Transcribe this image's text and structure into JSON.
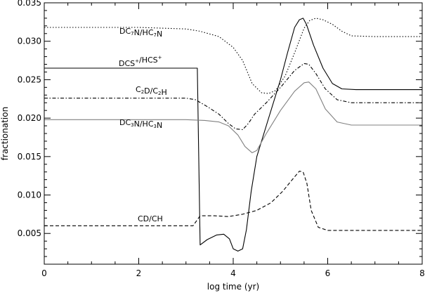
{
  "chart_data": {
    "type": "line",
    "xlabel": "log time (yr)",
    "ylabel": "fractionation",
    "xlim": [
      0,
      8
    ],
    "ylim": [
      0.001,
      0.035
    ],
    "xticks": [
      0,
      2,
      4,
      6,
      8
    ],
    "xtick_labels": [
      "0",
      "2",
      "4",
      "6",
      "8"
    ],
    "yticks": [
      0.005,
      0.01,
      0.015,
      0.02,
      0.025,
      0.03,
      0.035
    ],
    "ytick_labels": [
      "0.005",
      "0.010",
      "0.015",
      "0.020",
      "0.025",
      "0.030",
      "0.035"
    ],
    "grid": false,
    "legend": "none",
    "series": [
      {
        "name": "DC7N/HC7N",
        "label_parts": [
          [
            "DC",
            false
          ],
          [
            "7",
            true
          ],
          [
            "N/HC",
            false
          ],
          [
            "7",
            true
          ],
          [
            "N",
            false
          ]
        ],
        "color": "#000000",
        "style": "dotted",
        "x": [
          0,
          1,
          2,
          3,
          3.3,
          3.7,
          4.0,
          4.2,
          4.4,
          4.6,
          4.75,
          4.9,
          5.1,
          5.3,
          5.5,
          5.62,
          5.75,
          5.9,
          6.1,
          6.3,
          6.5,
          7,
          8
        ],
        "y": [
          0.0318,
          0.0318,
          0.0318,
          0.0316,
          0.0313,
          0.0306,
          0.0292,
          0.0275,
          0.0245,
          0.0233,
          0.0232,
          0.0236,
          0.0255,
          0.0285,
          0.0317,
          0.0327,
          0.033,
          0.0328,
          0.0322,
          0.0313,
          0.0307,
          0.0306,
          0.0306
        ]
      },
      {
        "name": "DCS+/HCS+",
        "label_parts": [
          [
            "DCS",
            false
          ],
          [
            "+",
            "sup"
          ],
          [
            "/HCS",
            false
          ],
          [
            "+",
            "sup"
          ]
        ],
        "color": "#000000",
        "style": "solid",
        "x": [
          0,
          3.22,
          3.24,
          3.3,
          3.45,
          3.65,
          3.8,
          3.92,
          4.0,
          4.1,
          4.2,
          4.28,
          4.38,
          4.5,
          4.75,
          5.0,
          5.15,
          5.3,
          5.4,
          5.48,
          5.55,
          5.7,
          5.9,
          6.1,
          6.3,
          6.6,
          7,
          8
        ],
        "y": [
          0.0265,
          0.0265,
          0.0265,
          0.0035,
          0.0042,
          0.0048,
          0.0049,
          0.0043,
          0.003,
          0.0027,
          0.003,
          0.0055,
          0.0105,
          0.015,
          0.02,
          0.025,
          0.0285,
          0.0318,
          0.0328,
          0.033,
          0.0322,
          0.0295,
          0.0265,
          0.0245,
          0.0238,
          0.0237,
          0.0237,
          0.0237
        ]
      },
      {
        "name": "C2D/C2H",
        "label_parts": [
          [
            "C",
            false
          ],
          [
            "2",
            true
          ],
          [
            "D/C",
            false
          ],
          [
            "2",
            true
          ],
          [
            "H",
            false
          ]
        ],
        "color": "#000000",
        "style": "dash-dot",
        "x": [
          0,
          3.0,
          3.2,
          3.45,
          3.7,
          3.9,
          4.05,
          4.2,
          4.32,
          4.45,
          4.7,
          5.0,
          5.3,
          5.5,
          5.6,
          5.75,
          5.95,
          6.2,
          6.5,
          7,
          8
        ],
        "y": [
          0.0226,
          0.0226,
          0.0224,
          0.0215,
          0.0205,
          0.0193,
          0.0186,
          0.0185,
          0.0193,
          0.0205,
          0.022,
          0.024,
          0.0262,
          0.0271,
          0.027,
          0.0258,
          0.0238,
          0.0224,
          0.022,
          0.022,
          0.022
        ]
      },
      {
        "name": "DC3N/HC3N",
        "label_parts": [
          [
            "DC",
            false
          ],
          [
            "3",
            true
          ],
          [
            "N/HC",
            false
          ],
          [
            "3",
            true
          ],
          [
            "N",
            false
          ]
        ],
        "color": "#808080",
        "style": "solid",
        "x": [
          0,
          2.5,
          3.0,
          3.4,
          3.7,
          3.9,
          4.1,
          4.25,
          4.4,
          4.5,
          4.7,
          5.0,
          5.3,
          5.5,
          5.6,
          5.75,
          5.95,
          6.2,
          6.5,
          7,
          8
        ],
        "y": [
          0.0198,
          0.0198,
          0.0198,
          0.0197,
          0.0195,
          0.019,
          0.0178,
          0.0163,
          0.0155,
          0.0158,
          0.018,
          0.021,
          0.0235,
          0.0246,
          0.0247,
          0.0238,
          0.0212,
          0.0195,
          0.0191,
          0.0191,
          0.0191
        ]
      },
      {
        "name": "CD/CH",
        "label_parts": [
          [
            "CD/CH",
            false
          ]
        ],
        "color": "#000000",
        "style": "dashed",
        "x": [
          0,
          3.15,
          3.3,
          3.6,
          3.9,
          4.2,
          4.5,
          4.8,
          5.05,
          5.25,
          5.4,
          5.48,
          5.56,
          5.65,
          5.8,
          6.0,
          6.3,
          7,
          8
        ],
        "y": [
          0.006,
          0.006,
          0.0073,
          0.0073,
          0.0072,
          0.0075,
          0.008,
          0.009,
          0.0105,
          0.012,
          0.0131,
          0.013,
          0.0115,
          0.008,
          0.0058,
          0.0054,
          0.0054,
          0.0054,
          0.0054
        ]
      }
    ]
  }
}
